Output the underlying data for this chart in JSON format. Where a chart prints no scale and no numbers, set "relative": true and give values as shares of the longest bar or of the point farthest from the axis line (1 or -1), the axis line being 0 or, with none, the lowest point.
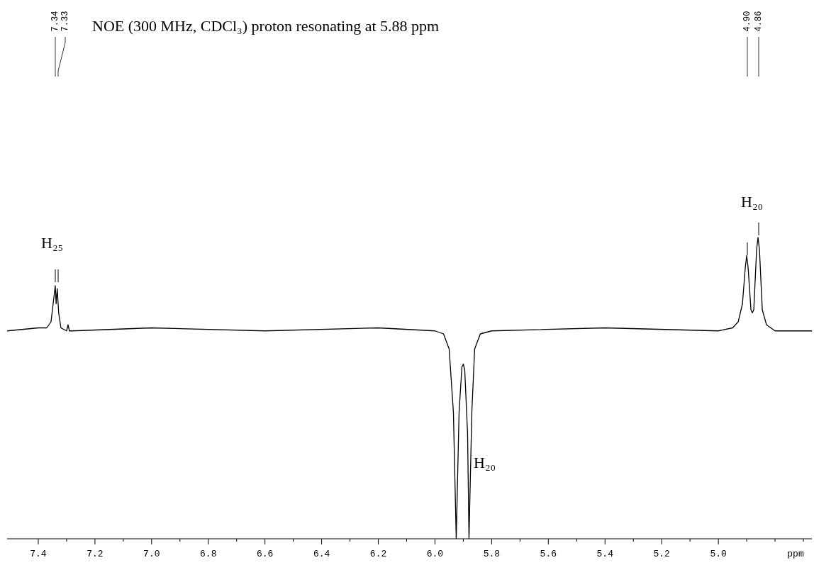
{
  "chart_data": {
    "type": "line",
    "title": "NOE (300 MHz, CDCl₃) proton resonating at 5.88 ppm",
    "xlabel": "ppm",
    "relative": true,
    "x": [
      7.51,
      7.4,
      7.37,
      7.355,
      7.345,
      7.34,
      7.337,
      7.333,
      7.328,
      7.32,
      7.3,
      7.295,
      7.29,
      7.28,
      7.0,
      6.6,
      6.2,
      6.0,
      5.97,
      5.95,
      5.935,
      5.925,
      5.915,
      5.905,
      5.9,
      5.895,
      5.885,
      5.88,
      5.87,
      5.86,
      5.84,
      5.8,
      5.4,
      5.0,
      4.95,
      4.93,
      4.915,
      4.905,
      4.9,
      4.895,
      4.885,
      4.88,
      4.875,
      4.865,
      4.86,
      4.855,
      4.845,
      4.83,
      4.8,
      4.67
    ],
    "values": [
      0.69,
      0.7,
      0.7,
      0.72,
      0.8,
      0.84,
      0.78,
      0.83,
      0.75,
      0.7,
      0.69,
      0.71,
      0.69,
      0.69,
      0.7,
      0.69,
      0.7,
      0.69,
      0.68,
      0.63,
      0.42,
      0,
      0.42,
      0.57,
      0.58,
      0.56,
      0.35,
      0,
      0.42,
      0.63,
      0.68,
      0.69,
      0.7,
      0.69,
      0.7,
      0.72,
      0.78,
      0.9,
      0.94,
      0.9,
      0.76,
      0.75,
      0.76,
      0.96,
      1,
      0.96,
      0.76,
      0.71,
      0.69,
      0.69
    ],
    "color": "#000000",
    "xlim": [
      7.51,
      4.67
    ],
    "xticks": [
      7.4,
      {
        "value": 7.3,
        "label": null
      },
      7.2,
      {
        "value": 7.1,
        "label": null
      },
      {
        "value": 7.0,
        "label": "7.0"
      },
      {
        "value": 6.9,
        "label": null
      },
      6.8,
      {
        "value": 6.7,
        "label": null
      },
      6.6,
      {
        "value": 6.5,
        "label": null
      },
      6.4,
      {
        "value": 6.3,
        "label": null
      },
      6.2,
      {
        "value": 6.1,
        "label": null
      },
      {
        "value": 6.0,
        "label": "6.0"
      },
      {
        "value": 5.9,
        "label": null
      },
      5.8,
      {
        "value": 5.7,
        "label": null
      },
      5.6,
      {
        "value": 5.5,
        "label": null
      },
      5.4,
      {
        "value": 5.3,
        "label": null
      },
      5.2,
      {
        "value": 5.1,
        "label": null
      },
      {
        "value": 5.0,
        "label": "5.0"
      },
      {
        "value": 4.9,
        "label": null
      },
      {
        "value": 4.8,
        "label": null
      },
      {
        "value": 4.7,
        "label": null
      }
    ],
    "annotations": [
      "H₂₅",
      "H₂₀",
      "H₂₀",
      "7.34",
      "7.33",
      "4.90",
      "4.86"
    ]
  }
}
